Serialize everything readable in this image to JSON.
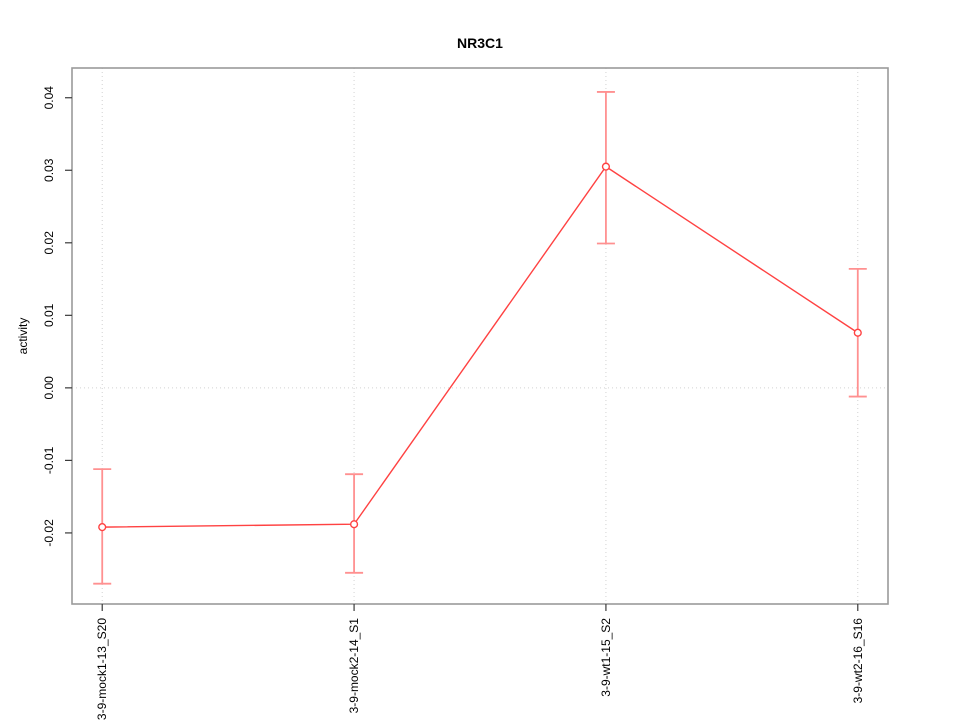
{
  "page": {
    "background": "#ffffff"
  },
  "chart_data": {
    "type": "line",
    "title": "NR3C1",
    "xlabel": "",
    "ylabel": "activity",
    "categories": [
      "3-9-mock1-13_S20",
      "3-9-mock2-14_S1",
      "3-9-wt1-15_S2",
      "3-9-wt2-16_S16"
    ],
    "series": [
      {
        "name": "activity",
        "values": [
          -0.0192,
          -0.0188,
          0.0305,
          0.0076
        ],
        "error_low": [
          -0.027,
          -0.0255,
          0.0199,
          -0.0012
        ],
        "error_high": [
          -0.0112,
          -0.0119,
          0.0408,
          0.0164
        ]
      }
    ],
    "yticks": [
      -0.02,
      -0.01,
      0.0,
      0.01,
      0.02,
      0.03,
      0.04
    ],
    "ytick_labels": [
      "-0.02",
      "-0.01",
      "0.00",
      "0.01",
      "0.02",
      "0.03",
      "0.04"
    ],
    "ylim": [
      -0.0298,
      0.0441
    ],
    "xlim": [
      0.88,
      4.12
    ],
    "grid": {
      "vertical_at_categories": true,
      "horizontal_at_zero": true,
      "style": "dotted"
    },
    "legend": "none",
    "marker": "open-circle",
    "colors": {
      "line": "#ff4242",
      "error_bar": "#ff9090",
      "marker_stroke": "#ff4242",
      "marker_fill": "#ffffff",
      "grid": "#d2d2d2",
      "box": "#9a9a9a",
      "tick": "#3a3a3a",
      "text": "#000000"
    }
  }
}
